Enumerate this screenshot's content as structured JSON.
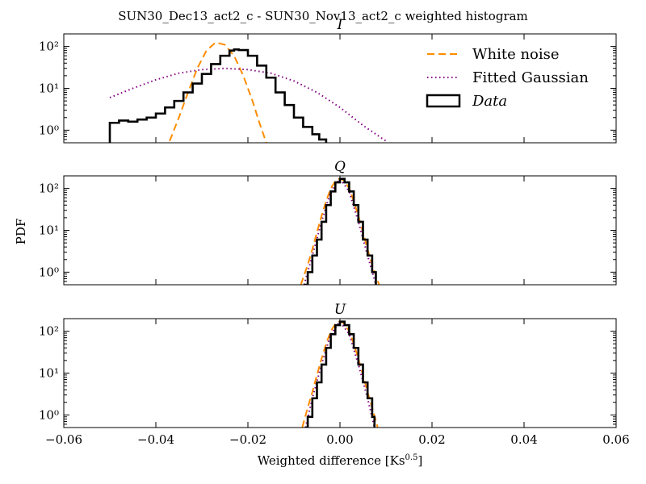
{
  "figure": {
    "suptitle": "SUN30_Dec13_act2_c - SUN30_Nov13_act2_c weighted histogram",
    "xlabel": "Weighted difference [Ks$^{0.5}$]",
    "xlabel_main": "Weighted difference [Ks",
    "xlabel_exp": "0.5",
    "xlabel_close": "]",
    "ylabel": "PDF"
  },
  "legend": {
    "location": "upper right of top panel",
    "items": [
      {
        "label": "White noise",
        "style": "dashed",
        "color": "#ff8c00"
      },
      {
        "label": "Fitted Gaussian",
        "style": "dotted",
        "color": "#800080"
      },
      {
        "label": "Data",
        "style": "box",
        "color": "#000000"
      }
    ]
  },
  "chart_data": [
    {
      "type": "line",
      "panel": "I",
      "title": "I",
      "xlim": [
        -0.06,
        0.06
      ],
      "ylim": [
        0.5,
        200
      ],
      "yscale": "log",
      "xticks": [
        "−0.06",
        "−0.04",
        "−0.02",
        "0.00",
        "0.02",
        "0.04",
        "0.06"
      ],
      "yticks": [
        {
          "value": 1,
          "label": "10⁰"
        },
        {
          "value": 10,
          "label": "10¹"
        },
        {
          "value": 100,
          "label": "10²"
        }
      ],
      "series": [
        {
          "name": "White noise",
          "color": "#ff8c00",
          "style": "dashed",
          "x": [
            -0.037,
            -0.035,
            -0.033,
            -0.031,
            -0.029,
            -0.027,
            -0.025,
            -0.023,
            -0.021,
            -0.019,
            -0.0175,
            -0.016
          ],
          "y": [
            0.55,
            2.0,
            8.0,
            30,
            80,
            125,
            110,
            60,
            20,
            5,
            1.5,
            0.5
          ]
        },
        {
          "name": "Fitted Gaussian",
          "color": "#800080",
          "style": "dotted",
          "x": [
            -0.05,
            -0.045,
            -0.04,
            -0.035,
            -0.03,
            -0.025,
            -0.02,
            -0.015,
            -0.01,
            -0.005,
            0.0,
            0.005,
            0.01
          ],
          "y": [
            6,
            10,
            16,
            23,
            28,
            30,
            28,
            23,
            15,
            8,
            3.5,
            1.3,
            0.55
          ]
        },
        {
          "name": "Data",
          "color": "#000000",
          "style": "step",
          "x": [
            -0.05,
            -0.05,
            -0.048,
            -0.046,
            -0.044,
            -0.042,
            -0.04,
            -0.038,
            -0.036,
            -0.034,
            -0.032,
            -0.03,
            -0.028,
            -0.026,
            -0.024,
            -0.023,
            -0.022,
            -0.02,
            -0.018,
            -0.016,
            -0.014,
            -0.012,
            -0.01,
            -0.008,
            -0.006,
            -0.0045,
            -0.003
          ],
          "y": [
            0.5,
            1.5,
            1.7,
            1.6,
            1.8,
            2.0,
            2.5,
            3.5,
            5.0,
            8.0,
            13,
            22,
            38,
            60,
            80,
            85,
            82,
            60,
            35,
            18,
            8,
            4,
            2,
            1.2,
            0.8,
            0.6,
            0.5
          ]
        }
      ]
    },
    {
      "type": "line",
      "panel": "Q",
      "title": "Q",
      "xlim": [
        -0.06,
        0.06
      ],
      "ylim": [
        0.5,
        200
      ],
      "yscale": "log",
      "xticks": [
        "−0.06",
        "−0.04",
        "−0.02",
        "0.00",
        "0.02",
        "0.04",
        "0.06"
      ],
      "yticks": [
        {
          "value": 1,
          "label": "10⁰"
        },
        {
          "value": 10,
          "label": "10¹"
        },
        {
          "value": 100,
          "label": "10²"
        }
      ],
      "series": [
        {
          "name": "White noise",
          "color": "#ff8c00",
          "style": "dashed",
          "x": [
            -0.0085,
            -0.007,
            -0.006,
            -0.005,
            -0.004,
            -0.003,
            -0.002,
            -0.001,
            0.0,
            0.001,
            0.002,
            0.003,
            0.004,
            0.005,
            0.006,
            0.007,
            0.0085
          ],
          "y": [
            0.5,
            1.5,
            3.5,
            9,
            22,
            50,
            100,
            150,
            175,
            150,
            100,
            50,
            22,
            9,
            3.5,
            1.5,
            0.5
          ]
        },
        {
          "name": "Fitted Gaussian",
          "color": "#800080",
          "style": "dotted",
          "x": [
            -0.0078,
            -0.006,
            -0.004,
            -0.002,
            0.0,
            0.002,
            0.004,
            0.006,
            0.0078
          ],
          "y": [
            0.5,
            2.5,
            16,
            85,
            170,
            85,
            16,
            2.5,
            0.5
          ]
        },
        {
          "name": "Data",
          "color": "#000000",
          "style": "step",
          "x": [
            -0.0078,
            -0.007,
            -0.006,
            -0.005,
            -0.004,
            -0.003,
            -0.002,
            -0.001,
            0.0,
            0.001,
            0.002,
            0.003,
            0.004,
            0.005,
            0.006,
            0.007,
            0.0078
          ],
          "y": [
            0.5,
            1.0,
            2.5,
            6,
            16,
            40,
            85,
            140,
            170,
            140,
            85,
            40,
            16,
            6,
            2.5,
            1.0,
            0.5
          ]
        }
      ]
    },
    {
      "type": "line",
      "panel": "U",
      "title": "U",
      "xlim": [
        -0.06,
        0.06
      ],
      "ylim": [
        0.5,
        200
      ],
      "yscale": "log",
      "xticks": [
        "−0.06",
        "−0.04",
        "−0.02",
        "0.00",
        "0.02",
        "0.04",
        "0.06"
      ],
      "yticks": [
        {
          "value": 1,
          "label": "10⁰"
        },
        {
          "value": 10,
          "label": "10¹"
        },
        {
          "value": 100,
          "label": "10²"
        }
      ],
      "series": [
        {
          "name": "White noise",
          "color": "#ff8c00",
          "style": "dashed",
          "x": [
            -0.0082,
            -0.007,
            -0.006,
            -0.005,
            -0.004,
            -0.003,
            -0.002,
            -0.001,
            0.0,
            0.001,
            0.002,
            0.003,
            0.004,
            0.005,
            0.006,
            0.007,
            0.0082
          ],
          "y": [
            0.5,
            1.5,
            3.5,
            9,
            22,
            50,
            100,
            150,
            175,
            150,
            100,
            50,
            22,
            9,
            3.5,
            1.5,
            0.5
          ]
        },
        {
          "name": "Fitted Gaussian",
          "color": "#800080",
          "style": "dotted",
          "x": [
            -0.0075,
            -0.006,
            -0.004,
            -0.002,
            0.0,
            0.002,
            0.004,
            0.006,
            0.0075
          ],
          "y": [
            0.5,
            2.5,
            16,
            85,
            170,
            85,
            16,
            2.5,
            0.5
          ]
        },
        {
          "name": "Data",
          "color": "#000000",
          "style": "step",
          "x": [
            -0.0075,
            -0.007,
            -0.006,
            -0.005,
            -0.004,
            -0.003,
            -0.002,
            -0.001,
            0.0,
            0.001,
            0.002,
            0.003,
            0.004,
            0.005,
            0.006,
            0.007,
            0.0075
          ],
          "y": [
            0.5,
            0.9,
            2.5,
            6,
            16,
            40,
            85,
            140,
            170,
            140,
            85,
            40,
            16,
            6,
            2.5,
            0.9,
            0.5
          ]
        }
      ]
    }
  ]
}
